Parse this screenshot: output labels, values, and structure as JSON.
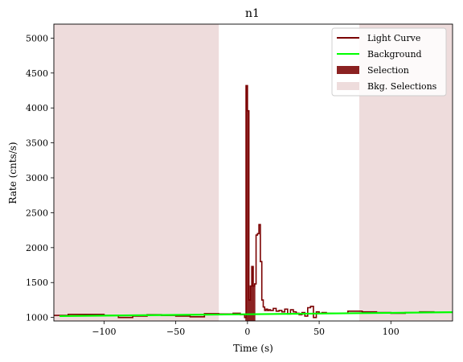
{
  "chart_data": {
    "type": "line",
    "title": "n1",
    "xlabel": "Time (s)",
    "ylabel": "Rate (cnts/s)",
    "xlim": [
      -135,
      143
    ],
    "ylim": [
      950,
      5200
    ],
    "xticks": [
      -100,
      -50,
      0,
      50,
      100
    ],
    "yticks": [
      1000,
      1500,
      2000,
      2500,
      3000,
      3500,
      4000,
      4500,
      5000
    ],
    "grid": false,
    "legend_position": "top-right",
    "legend": [
      {
        "label": "Light Curve",
        "kind": "line",
        "color": "#7a0000"
      },
      {
        "label": "Background",
        "kind": "line",
        "color": "#00ff00"
      },
      {
        "label": "Selection",
        "kind": "patch",
        "color": "#8b2222"
      },
      {
        "label": "Bkg. Selections",
        "kind": "patch",
        "color": "#eedcdc"
      }
    ],
    "light_curve": {
      "step_edges": [
        -135,
        -125,
        -115,
        -100,
        -90,
        -80,
        -70,
        -60,
        -50,
        -40,
        -30,
        -20,
        -10,
        -5,
        -2,
        -1,
        0,
        1,
        2,
        3,
        4,
        5,
        6,
        7,
        8,
        9,
        10,
        11,
        12,
        13,
        14,
        15,
        16,
        18,
        20,
        22,
        24,
        26,
        28,
        30,
        32,
        34,
        36,
        38,
        40,
        42,
        44,
        46,
        48,
        50,
        52,
        55,
        60,
        70,
        80,
        90,
        100,
        110,
        120,
        130,
        143
      ],
      "rates": [
        1030,
        1045,
        1045,
        1030,
        1000,
        1020,
        1040,
        1030,
        1020,
        1010,
        1055,
        1050,
        1060,
        1040,
        1000,
        4320,
        3960,
        1250,
        1450,
        1730,
        1450,
        1480,
        2180,
        2200,
        2330,
        1800,
        1250,
        1150,
        1100,
        1120,
        1100,
        1110,
        1100,
        1130,
        1090,
        1100,
        1080,
        1120,
        1050,
        1110,
        1080,
        1060,
        1040,
        1070,
        1020,
        1140,
        1160,
        1000,
        1080,
        1060,
        1070,
        1060,
        1060,
        1090,
        1080,
        1070,
        1060,
        1070,
        1080,
        1075
      ]
    },
    "background_line": {
      "x": [
        -131,
        143
      ],
      "y": [
        1020,
        1075
      ]
    },
    "selection_interval": [
      -1.5,
      5.5
    ],
    "background_selections": [
      [
        -135,
        -20
      ],
      [
        78,
        143
      ]
    ]
  }
}
